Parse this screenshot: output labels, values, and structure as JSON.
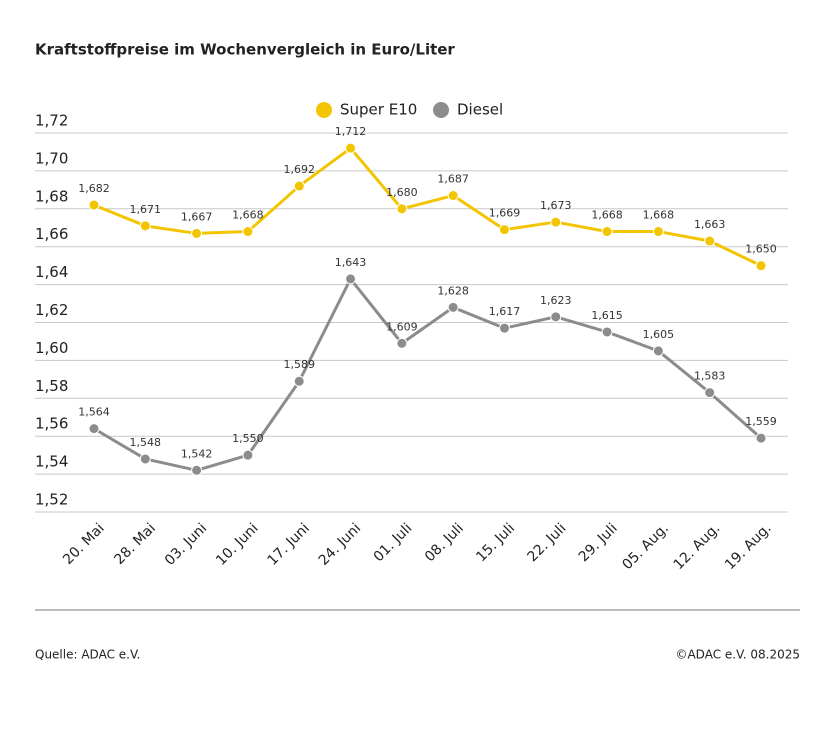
{
  "chart_data": {
    "type": "line",
    "title": "Kraftstoffpreise im Wochenvergleich in Euro/Liter",
    "categories": [
      "20. Mai",
      "28. Mai",
      "03. Juni",
      "10. Juni",
      "17. Juni",
      "24. Juni",
      "01. Juli",
      "08. Juli",
      "15. Juli",
      "22. Juli",
      "29. Juli",
      "05. Aug.",
      "12. Aug.",
      "19. Aug."
    ],
    "series": [
      {
        "name": "Super E10",
        "color": "#f2c500",
        "values": [
          1.682,
          1.671,
          1.667,
          1.668,
          1.692,
          1.712,
          1.68,
          1.687,
          1.669,
          1.673,
          1.668,
          1.668,
          1.663,
          1.65
        ],
        "value_labels": [
          "1,682",
          "1,671",
          "1,667",
          "1,668",
          "1,692",
          "1,712",
          "1,680",
          "1,687",
          "1,669",
          "1,673",
          "1,668",
          "1,668",
          "1,663",
          "1,650"
        ]
      },
      {
        "name": "Diesel",
        "color": "#8c8c8c",
        "values": [
          1.564,
          1.548,
          1.542,
          1.55,
          1.589,
          1.643,
          1.609,
          1.628,
          1.617,
          1.623,
          1.615,
          1.605,
          1.583,
          1.559
        ],
        "value_labels": [
          "1,564",
          "1,548",
          "1,542",
          "1,550",
          "1,589",
          "1,643",
          "1,609",
          "1,628",
          "1,617",
          "1,623",
          "1,615",
          "1,605",
          "1,583",
          "1,559"
        ]
      }
    ],
    "ylim": [
      1.52,
      1.72
    ],
    "yticks": [
      {
        "value": 1.52,
        "label": "1,52"
      },
      {
        "value": 1.54,
        "label": "1,54"
      },
      {
        "value": 1.56,
        "label": "1,56"
      },
      {
        "value": 1.58,
        "label": "1,58"
      },
      {
        "value": 1.6,
        "label": "1,60"
      },
      {
        "value": 1.62,
        "label": "1,62"
      },
      {
        "value": 1.64,
        "label": "1,64"
      },
      {
        "value": 1.66,
        "label": "1,66"
      },
      {
        "value": 1.68,
        "label": "1,68"
      },
      {
        "value": 1.7,
        "label": "1,70"
      },
      {
        "value": 1.72,
        "label": "1,72"
      }
    ],
    "grid": true,
    "legend": "top",
    "source": "Quelle: ADAC e.V.",
    "copyright": "©ADAC e.V. 08.2025"
  }
}
